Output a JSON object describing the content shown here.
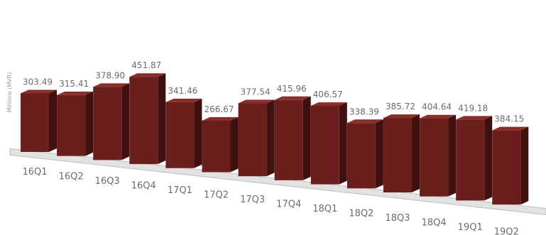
{
  "chart_data": {
    "type": "bar",
    "ylabel": "Millions (MVR)",
    "categories": [
      "16Q1",
      "16Q2",
      "16Q3",
      "16Q4",
      "17Q1",
      "17Q2",
      "17Q3",
      "17Q4",
      "18Q1",
      "18Q2",
      "18Q3",
      "18Q4",
      "19Q1",
      "19Q2"
    ],
    "values": [
      303.49,
      315.41,
      378.9,
      451.87,
      341.46,
      266.67,
      377.54,
      415.96,
      406.57,
      338.39,
      385.72,
      404.64,
      419.18,
      384.15
    ],
    "value_labels": [
      "303.49",
      "315.41",
      "378.90",
      "451.87",
      "341.46",
      "266.67",
      "377.54",
      "415.96",
      "406.57",
      "338.39",
      "385.72",
      "404.64",
      "419.18",
      "384.15"
    ],
    "ylim": [
      0,
      460
    ],
    "grid": false,
    "style": "3d-bars",
    "colors": {
      "bar_front": "#6b1f1c",
      "bar_side": "#3f100e",
      "bar_top": "#8a2e2a",
      "floor": "#e2e2e2",
      "floor_edge": "#bdbdbd",
      "label": "#6b6b6b"
    }
  }
}
